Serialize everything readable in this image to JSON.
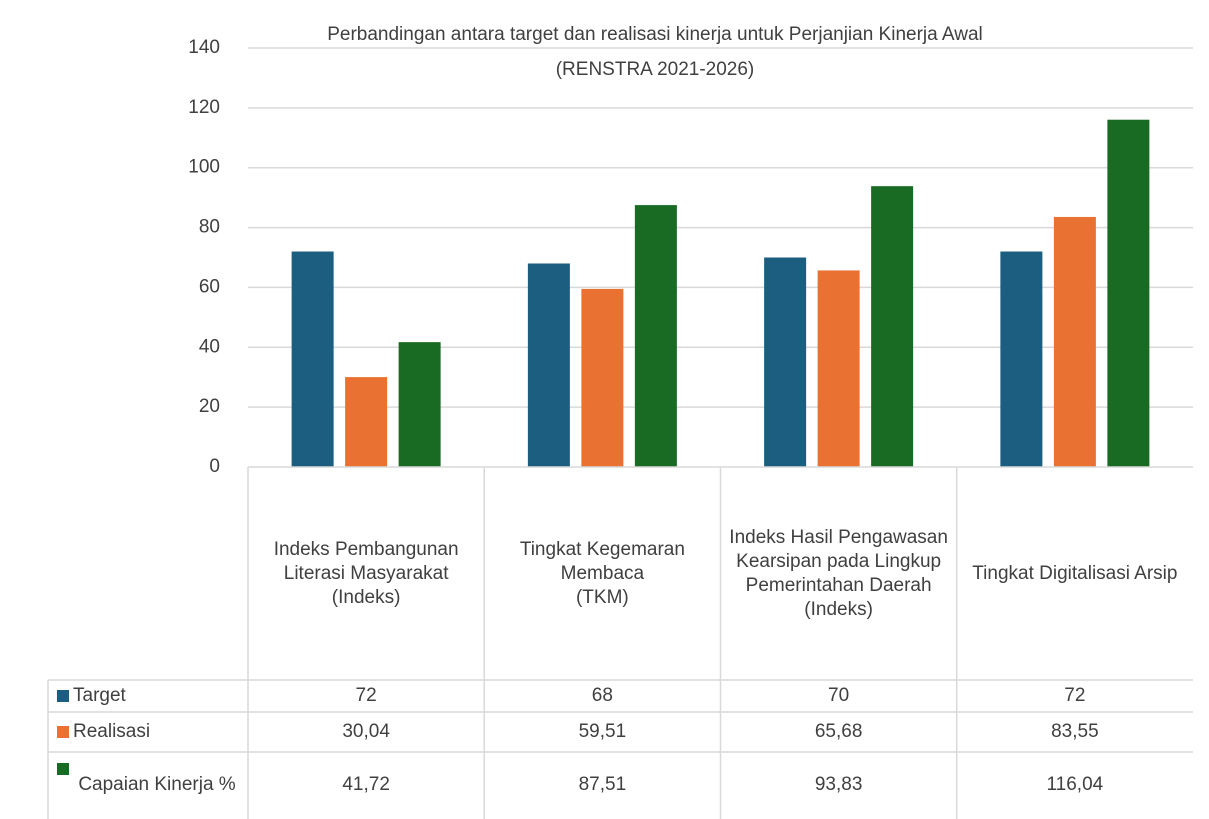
{
  "chart_data": {
    "type": "bar",
    "title": "Perbandingan antara target dan realisasi kinerja untuk Perjanjian Kinerja Awal",
    "subtitle": "(RENSTRA 2021-2026)",
    "categories": [
      "Indeks Pembangunan Literasi Masyarakat\n(Indeks)",
      "Tingkat Kegemaran Membaca\n(TKM)",
      "Indeks Hasil Pengawasan Kearsipan pada Lingkup Pemerintahan Daerah\n(Indeks)",
      "Tingkat Digitalisasi Arsip"
    ],
    "series": [
      {
        "name": "Target",
        "color": "#1b5e80",
        "values": [
          72,
          68,
          70,
          72
        ]
      },
      {
        "name": "Realisasi",
        "color": "#e97132",
        "values": [
          30.04,
          59.51,
          65.68,
          83.55
        ],
        "value_labels": [
          "30,04",
          "59,51",
          "65,68",
          "83,55"
        ]
      },
      {
        "name": "Capaian Kinerja %",
        "color": "#196b24",
        "values": [
          41.72,
          87.51,
          93.83,
          116.04
        ],
        "value_labels": [
          "41,72",
          "87,51",
          "93,83",
          "116,04"
        ]
      }
    ],
    "ylim": [
      0,
      140
    ],
    "yticks": [
      0,
      20,
      40,
      60,
      80,
      100,
      120,
      140
    ],
    "grid": true,
    "data_table": true
  }
}
